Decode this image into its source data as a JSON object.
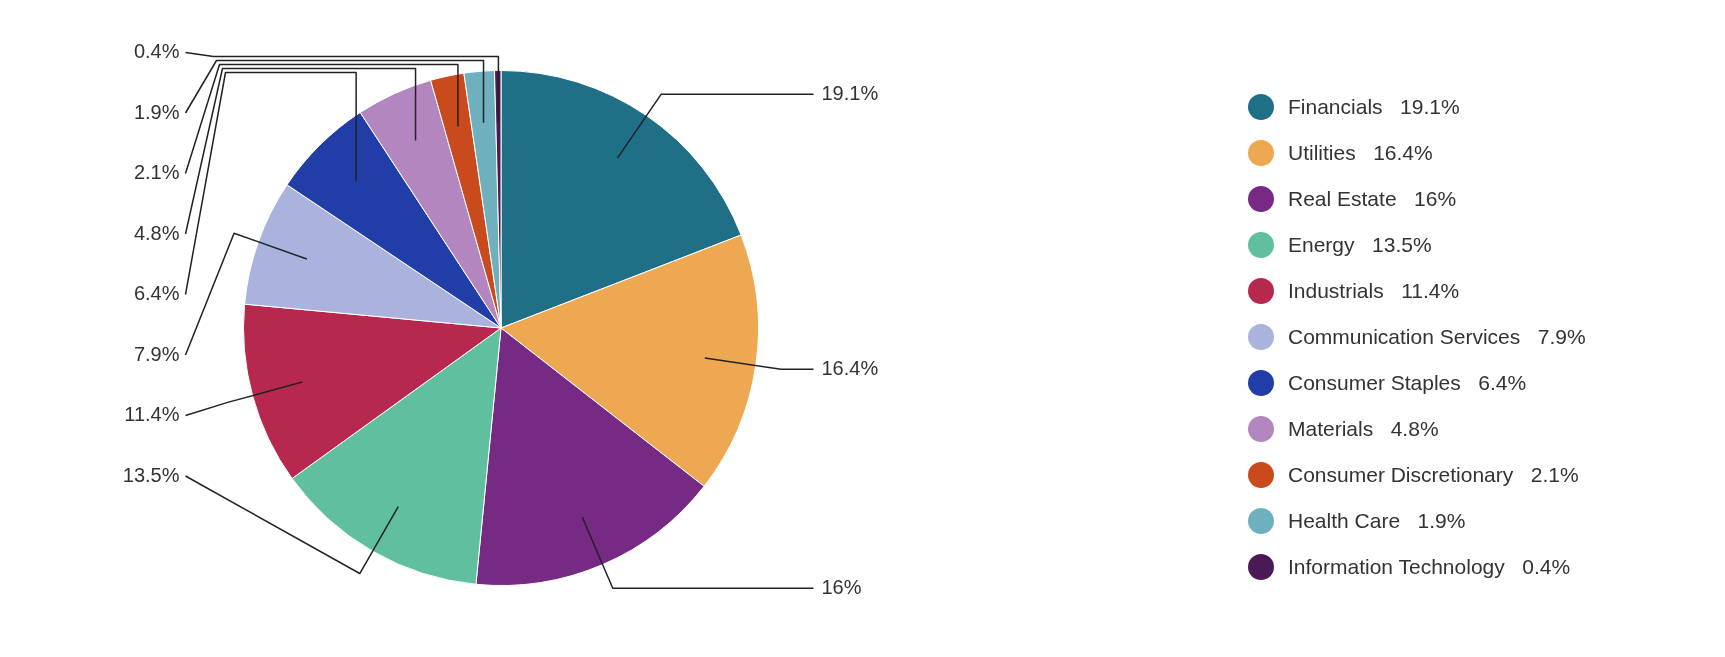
{
  "chart_data": {
    "type": "pie",
    "categories": [
      "Financials",
      "Utilities",
      "Real Estate",
      "Energy",
      "Industrials",
      "Communication Services",
      "Consumer Staples",
      "Materials",
      "Consumer Discretionary",
      "Health Care",
      "Information Technology"
    ],
    "values": [
      19.1,
      16.4,
      16,
      13.5,
      11.4,
      7.9,
      6.4,
      4.8,
      2.1,
      1.9,
      0.4
    ],
    "value_labels": [
      "19.1%",
      "16.4%",
      "16%",
      "13.5%",
      "11.4%",
      "7.9%",
      "6.4%",
      "4.8%",
      "2.1%",
      "1.9%",
      "0.4%"
    ],
    "colors": [
      "#1f6f87",
      "#eea852",
      "#762a83",
      "#5fbf9f",
      "#b7284f",
      "#a9b3de",
      "#213ea8",
      "#b486c0",
      "#c94a1c",
      "#6fb0bf",
      "#4a1a56"
    ],
    "legend": "right"
  }
}
